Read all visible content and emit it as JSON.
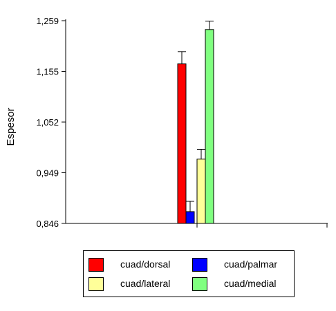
{
  "chart_data": {
    "type": "bar",
    "title": "",
    "ylabel": "Espesor",
    "xlabel": "",
    "yticks": [
      "0,846",
      "0,949",
      "1,052",
      "1,155",
      "1,259"
    ],
    "ylim": [
      0.846,
      1.259
    ],
    "grid": false,
    "legend_position": "bottom",
    "series": [
      {
        "name": "cuad/dorsal",
        "value": 1.171,
        "error": 0.025,
        "color": "#ff0000"
      },
      {
        "name": "cuad/palmar",
        "value": 0.87,
        "error": 0.021,
        "color": "#0000ff"
      },
      {
        "name": "cuad/lateral",
        "value": 0.977,
        "error": 0.02,
        "color": "#ffff99"
      },
      {
        "name": "cuad/medial",
        "value": 1.241,
        "error": 0.017,
        "color": "#80ff80"
      }
    ]
  }
}
